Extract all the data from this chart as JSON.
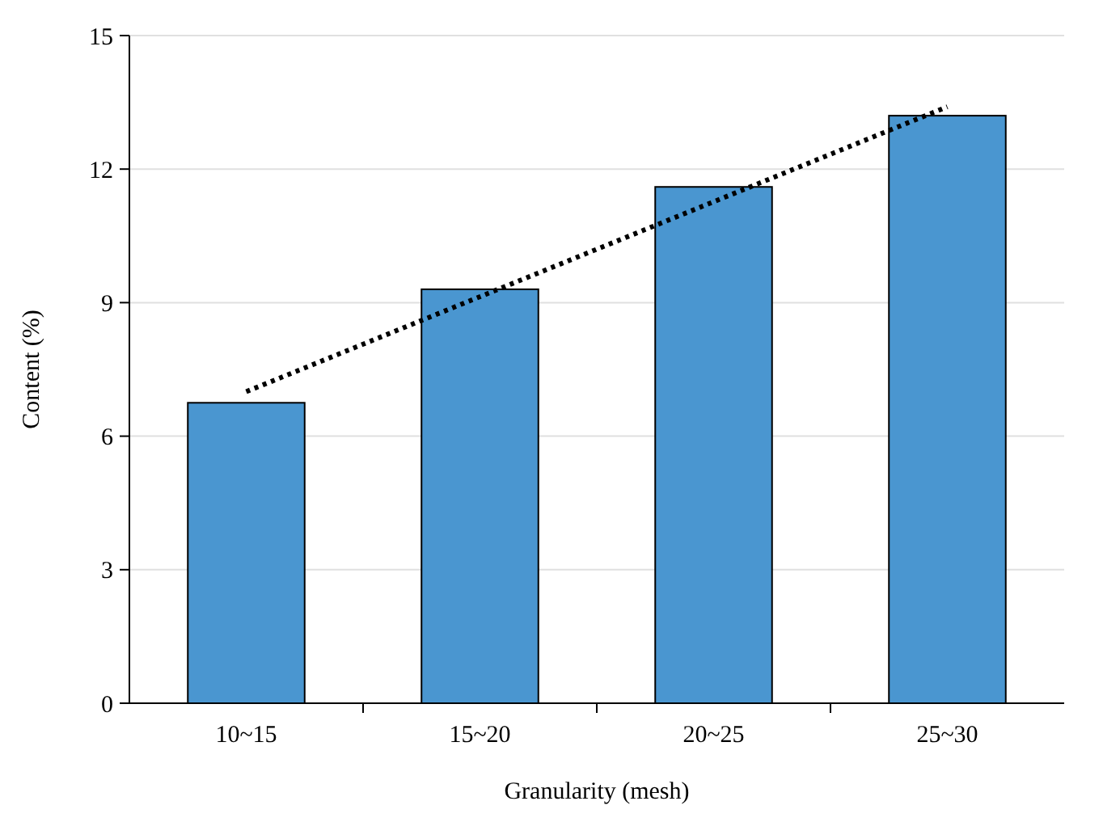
{
  "chart_data": {
    "type": "bar",
    "xlabel": "Granularity (mesh)",
    "ylabel": "Content (%)",
    "categories": [
      "10~15",
      "15~20",
      "20~25",
      "25~30"
    ],
    "series": [
      {
        "color": "#4a96d0",
        "values": [
          6.75,
          9.3,
          11.6,
          13.2
        ]
      },
      {
        "type": "line",
        "color": "#000000",
        "x": [
          "10~15",
          "25~30"
        ],
        "values": [
          7.0,
          13.4
        ],
        "line_style": "dotted",
        "marker": "none"
      }
    ],
    "ylim": [
      0,
      15
    ],
    "yticks": [
      0,
      3,
      6,
      9,
      12,
      15
    ],
    "grid": "y"
  }
}
